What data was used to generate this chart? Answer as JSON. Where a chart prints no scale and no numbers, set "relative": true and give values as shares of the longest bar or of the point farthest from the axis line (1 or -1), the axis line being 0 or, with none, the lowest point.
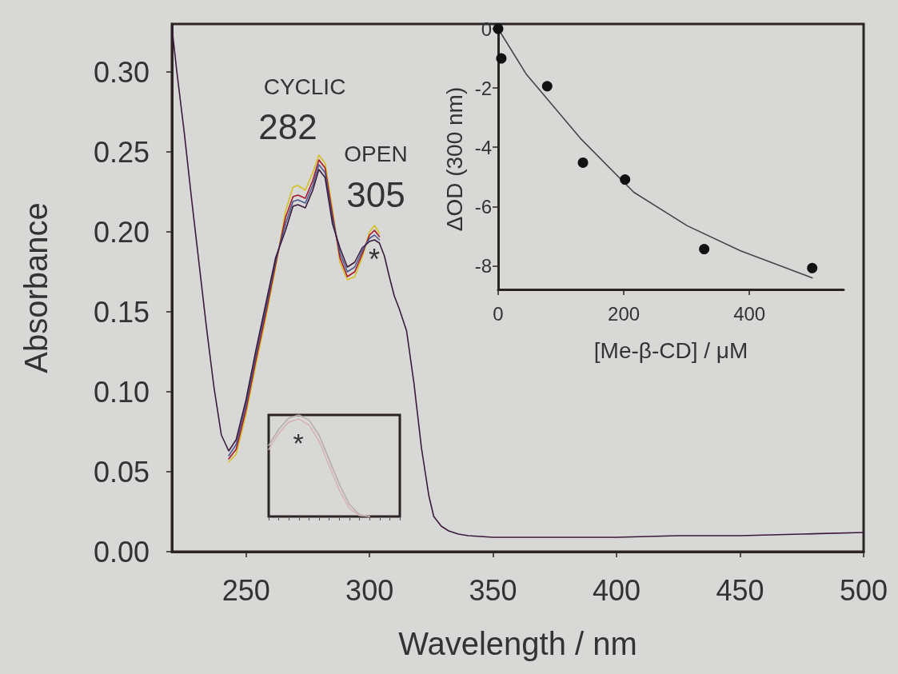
{
  "chart_data": [
    {
      "type": "line",
      "xlabel": "Wavelength / nm",
      "ylabel": "Absorbance",
      "xlim": [
        220,
        500
      ],
      "xticks": [
        250,
        300,
        350,
        400,
        450,
        500
      ],
      "ylim": [
        0,
        0.33
      ],
      "yticks": [
        {
          "value": 0,
          "label": "0.00"
        },
        {
          "value": 0.05,
          "label": "0.05"
        },
        {
          "value": 0.1,
          "label": "0.10"
        },
        {
          "value": 0.15,
          "label": "0.15"
        },
        {
          "value": 0.2,
          "label": "0.20"
        },
        {
          "value": 0.25,
          "label": "0.25"
        },
        {
          "value": 0.3,
          "label": "0.30"
        }
      ],
      "grid": false,
      "marker": "none",
      "x": [
        220,
        222,
        225,
        228,
        231,
        234,
        237,
        240,
        243,
        246,
        250,
        254,
        258,
        262,
        266,
        269,
        271,
        274,
        277,
        279.5,
        282,
        285,
        288,
        291,
        294,
        297,
        300,
        302,
        304,
        306,
        308,
        310,
        312,
        315,
        318,
        321,
        324,
        326,
        329,
        332,
        336,
        340,
        350,
        375,
        400,
        425,
        450,
        475,
        500
      ],
      "series": [
        {
          "color": "#d4c020",
          "values": [
            null,
            null,
            null,
            null,
            null,
            null,
            null,
            null,
            0.056,
            0.061,
            0.086,
            0.117,
            0.146,
            0.178,
            0.213,
            0.228,
            0.229,
            0.226,
            0.237,
            0.248,
            0.243,
            0.214,
            0.181,
            0.17,
            0.172,
            0.184,
            0.2,
            0.204,
            0.199,
            null,
            null,
            null,
            null,
            null,
            null,
            null,
            null,
            null,
            null,
            null,
            null,
            null,
            null,
            null,
            null,
            null,
            null,
            null,
            null
          ]
        },
        {
          "color": "#a8182c",
          "values": [
            null,
            null,
            null,
            null,
            null,
            null,
            null,
            null,
            0.058,
            0.064,
            0.089,
            0.12,
            0.149,
            0.18,
            0.209,
            0.222,
            0.223,
            0.221,
            0.232,
            0.245,
            0.24,
            0.211,
            0.184,
            0.172,
            0.175,
            0.186,
            0.198,
            0.201,
            0.197,
            null,
            null,
            null,
            null,
            null,
            null,
            null,
            null,
            null,
            null,
            null,
            null,
            null,
            null,
            null,
            null,
            null,
            null,
            null,
            null
          ]
        },
        {
          "color": "#4a5a90",
          "values": [
            null,
            null,
            null,
            null,
            null,
            null,
            null,
            null,
            0.06,
            0.067,
            0.092,
            0.123,
            0.152,
            0.182,
            0.205,
            0.219,
            0.22,
            0.218,
            0.229,
            0.242,
            0.237,
            0.208,
            0.187,
            0.175,
            0.178,
            0.188,
            0.196,
            0.198,
            0.195,
            null,
            null,
            null,
            null,
            null,
            null,
            null,
            null,
            null,
            null,
            null,
            null,
            null,
            null,
            null,
            null,
            null,
            null,
            null,
            null
          ]
        },
        {
          "color": "#3a1a3a",
          "values": [
            0.328,
            0.3,
            0.262,
            0.22,
            0.18,
            0.14,
            0.103,
            0.073,
            0.063,
            0.07,
            0.095,
            0.126,
            0.155,
            0.184,
            0.201,
            0.216,
            0.217,
            0.215,
            0.226,
            0.239,
            0.234,
            0.205,
            0.19,
            0.178,
            0.181,
            0.19,
            0.194,
            0.195,
            0.193,
            0.185,
            0.172,
            0.16,
            0.152,
            0.138,
            0.105,
            0.065,
            0.035,
            0.022,
            0.016,
            0.013,
            0.011,
            0.01,
            0.009,
            0.009,
            0.009,
            0.01,
            0.01,
            0.011,
            0.012
          ]
        }
      ],
      "annotations": [
        "CYCLIC",
        "282",
        "OPEN",
        "305",
        "*"
      ]
    },
    {
      "type": "scatter",
      "xlabel": "[Me-β-CD] / μM",
      "ylabel": "ΔOD (300 nm)",
      "xlim": [
        0,
        550
      ],
      "xticks": [
        0,
        200,
        400
      ],
      "ylim": [
        -8.8,
        0
      ],
      "yticks": [
        0,
        -2,
        -4,
        -6,
        -8
      ],
      "grid": false,
      "marker": "circle",
      "series": [
        {
          "type": "scatter",
          "color": "#111111",
          "x": [
            0,
            5,
            78,
            135,
            202,
            328,
            500
          ],
          "values": [
            0,
            -1,
            -1.94,
            -4.52,
            -5.09,
            -7.44,
            -8.08
          ]
        },
        {
          "type": "line",
          "marker": "none",
          "color": "#444444",
          "x": [
            0,
            45,
            131,
            216,
            301,
            386,
            500
          ],
          "values": [
            0,
            -1.54,
            -3.7,
            -5.52,
            -6.65,
            -7.5,
            -8.41
          ]
        }
      ]
    },
    {
      "type": "line",
      "relative": true,
      "marker": "none",
      "categories": [
        null,
        null,
        null,
        null,
        null,
        null,
        null,
        null,
        null,
        null,
        null,
        null,
        null,
        null
      ],
      "series": [
        {
          "color": "#b8acac",
          "values": [
            0.7,
            0.86,
            0.97,
            1,
            0.95,
            0.8,
            0.56,
            0.32,
            0.12,
            0.02,
            0,
            null,
            null,
            null
          ]
        },
        {
          "color": "#d4b4b4",
          "values": [
            0.66,
            0.82,
            0.93,
            0.96,
            0.9,
            0.74,
            0.5,
            0.26,
            0.08,
            0.01,
            0,
            null,
            null,
            null
          ]
        }
      ],
      "annotations": [
        "*"
      ]
    }
  ]
}
